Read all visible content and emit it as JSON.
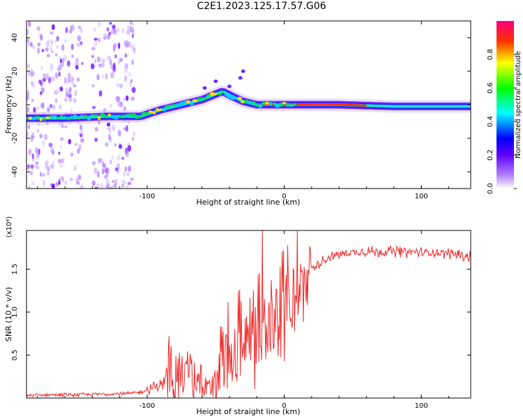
{
  "title": "C2E1.2023.125.17.57.G06",
  "chart_data": [
    {
      "type": "heatmap",
      "xlabel": "Height of straight line (km)",
      "ylabel": "Frequency (Hz)",
      "xlim": [
        -188,
        136
      ],
      "ylim": [
        -50,
        50
      ],
      "xticks": [
        -100,
        0,
        100
      ],
      "yticks": [
        -40,
        -20,
        0,
        20,
        40
      ],
      "colorbar": {
        "label": "Normalized spectral amplitude",
        "range": [
          0,
          1
        ],
        "ticks": [
          "0.0",
          "0.2",
          "0.4",
          "0.6",
          "0.8"
        ],
        "colors": [
          "#ffffff",
          "#8000ff",
          "#0000ff",
          "#00ffff",
          "#00ff00",
          "#ffff00",
          "#ff0000",
          "#ff0080"
        ]
      },
      "ridge": {
        "height_km": [
          -188,
          -160,
          -130,
          -105,
          -90,
          -75,
          -60,
          -45,
          -38,
          -30,
          -20,
          -10,
          0,
          10,
          40,
          80,
          136
        ],
        "frequency_hz": [
          -8,
          -8,
          -7,
          -7,
          -3,
          0,
          3,
          8,
          5,
          2,
          0,
          0,
          0,
          0,
          0,
          -1,
          -1
        ]
      }
    },
    {
      "type": "line",
      "xlabel": "Height of straight line (km)",
      "ylabel": "SNR (10 * v/v)",
      "y_multiplier": "(x10⁴)",
      "xlim": [
        -188,
        136
      ],
      "ylim": [
        0,
        1.95
      ],
      "xticks": [
        -100,
        0,
        100
      ],
      "yticks": [
        0.5,
        1.0,
        1.5
      ],
      "ytick_labels": [
        "0.5",
        "1.0",
        "1.5"
      ],
      "color": "#ef2a2a",
      "series": [
        {
          "x": [
            -188,
            -170,
            -150,
            -130,
            -115,
            -105,
            -100,
            -95,
            -90,
            -85,
            -80,
            -75,
            -70,
            -65,
            -60,
            -55,
            -50,
            -45,
            -40,
            -35,
            -30,
            -25,
            -20,
            -15,
            -10,
            -5,
            0,
            5,
            10,
            15,
            20,
            25,
            30,
            40,
            50,
            60,
            70,
            80,
            90,
            100,
            110,
            120,
            136
          ],
          "y": [
            0.03,
            0.04,
            0.04,
            0.05,
            0.05,
            0.07,
            0.1,
            0.13,
            0.17,
            0.25,
            0.35,
            0.3,
            0.25,
            0.2,
            0.15,
            0.13,
            0.25,
            0.4,
            0.45,
            0.55,
            0.62,
            0.68,
            0.75,
            0.82,
            0.9,
            0.98,
            1.05,
            1.15,
            1.28,
            1.4,
            1.5,
            1.57,
            1.62,
            1.68,
            1.7,
            1.71,
            1.71,
            1.71,
            1.71,
            1.7,
            1.7,
            1.69,
            1.65
          ]
        }
      ]
    }
  ]
}
